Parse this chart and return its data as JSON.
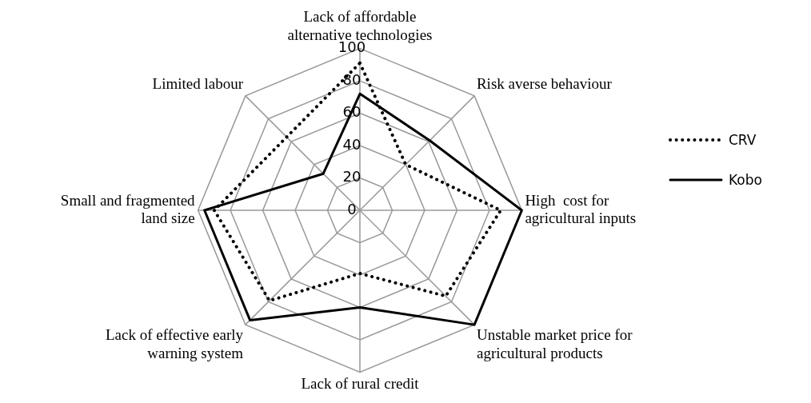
{
  "chart_data": {
    "type": "radar",
    "categories": [
      "Lack of affordable\nalternative technologies",
      "Risk averse behaviour",
      "High  cost for\nagricultural inputs",
      "Unstable market price for\nagricultural products",
      "Lack of rural credit",
      "Lack of effective early\nwarning system",
      "Small and fragmented\nland size",
      "Limited labour"
    ],
    "series": [
      {
        "name": "CRV",
        "color": "#000000",
        "line_style": "dotted",
        "values": [
          91,
          40,
          87,
          75,
          39,
          79,
          90,
          64
        ]
      },
      {
        "name": "Kobo",
        "color": "#000000",
        "line_style": "solid",
        "values": [
          72,
          61,
          100,
          100,
          60,
          96,
          96,
          32
        ]
      }
    ],
    "ylim": [
      0,
      100
    ],
    "yticks": [
      0,
      20,
      40,
      60,
      80,
      100
    ],
    "grid": true,
    "legend": "right",
    "marker": "none"
  }
}
